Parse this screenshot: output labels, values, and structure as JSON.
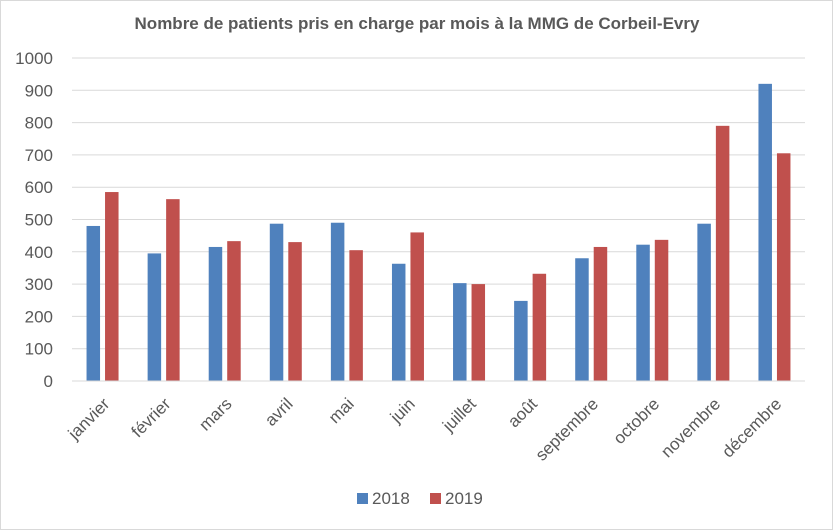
{
  "chart_data": {
    "type": "bar",
    "title": "Nombre de patients pris en charge par mois à la MMG de Corbeil-Evry",
    "xlabel": "",
    "ylabel": "",
    "categories": [
      "janvier",
      "février",
      "mars",
      "avril",
      "mai",
      "juin",
      "juillet",
      "août",
      "septembre",
      "octobre",
      "novembre",
      "décembre"
    ],
    "series": [
      {
        "name": "2018",
        "color": "#4f81bd",
        "values": [
          480,
          395,
          415,
          487,
          490,
          363,
          303,
          248,
          380,
          422,
          487,
          920
        ]
      },
      {
        "name": "2019",
        "color": "#c0504d",
        "values": [
          585,
          563,
          433,
          430,
          405,
          460,
          300,
          332,
          415,
          437,
          790,
          705
        ]
      }
    ],
    "ylim": [
      0,
      1000
    ],
    "yticks": [
      "0",
      "100",
      "200",
      "300",
      "400",
      "500",
      "600",
      "700",
      "800",
      "900",
      "1000"
    ],
    "grid": true,
    "legend": "bottom-center"
  }
}
